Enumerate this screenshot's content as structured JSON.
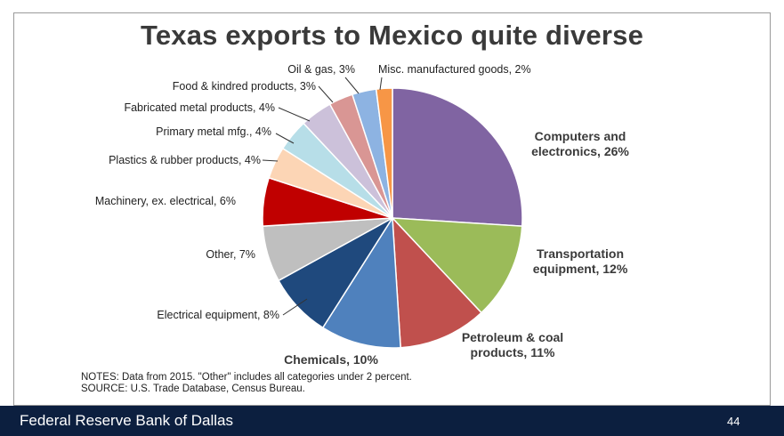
{
  "slide": {
    "title": "Texas exports to Mexico quite diverse",
    "notes_line1": "NOTES: Data from 2015. \"Other\" includes all categories under 2 percent.",
    "notes_line2": "SOURCE: U.S. Trade Database, Census Bureau.",
    "footer_brand": "Federal Reserve Bank of Dallas",
    "page_number": "44"
  },
  "chart_data": {
    "type": "pie",
    "slices": [
      {
        "label": "Computers and electronics, 26%",
        "value": 26,
        "color": "#8064a2"
      },
      {
        "label": "Transportation equipment, 12%",
        "value": 12,
        "color": "#9bbb59"
      },
      {
        "label": "Petroleum & coal products, 11%",
        "value": 11,
        "color": "#c0504d"
      },
      {
        "label": "Chemicals, 10%",
        "value": 10,
        "color": "#4f81bd"
      },
      {
        "label": "Electrical equipment, 8%",
        "value": 8,
        "color": "#1f497d"
      },
      {
        "label": "Other, 7%",
        "value": 7,
        "color": "#bfbfbf"
      },
      {
        "label": "Machinery, ex. electrical, 6%",
        "value": 6,
        "color": "#c00000"
      },
      {
        "label": "Plastics & rubber products, 4%",
        "value": 4,
        "color": "#fcd5b5"
      },
      {
        "label": "Primary metal mfg., 4%",
        "value": 4,
        "color": "#b7dee8"
      },
      {
        "label": "Fabricated metal products, 4%",
        "value": 4,
        "color": "#ccc1da"
      },
      {
        "label": "Food & kindred products, 3%",
        "value": 3,
        "color": "#d99694"
      },
      {
        "label": "Oil & gas, 3%",
        "value": 3,
        "color": "#8db3e2"
      },
      {
        "label": "Misc. manufactured goods, 2%",
        "value": 2,
        "color": "#f79646"
      }
    ]
  }
}
